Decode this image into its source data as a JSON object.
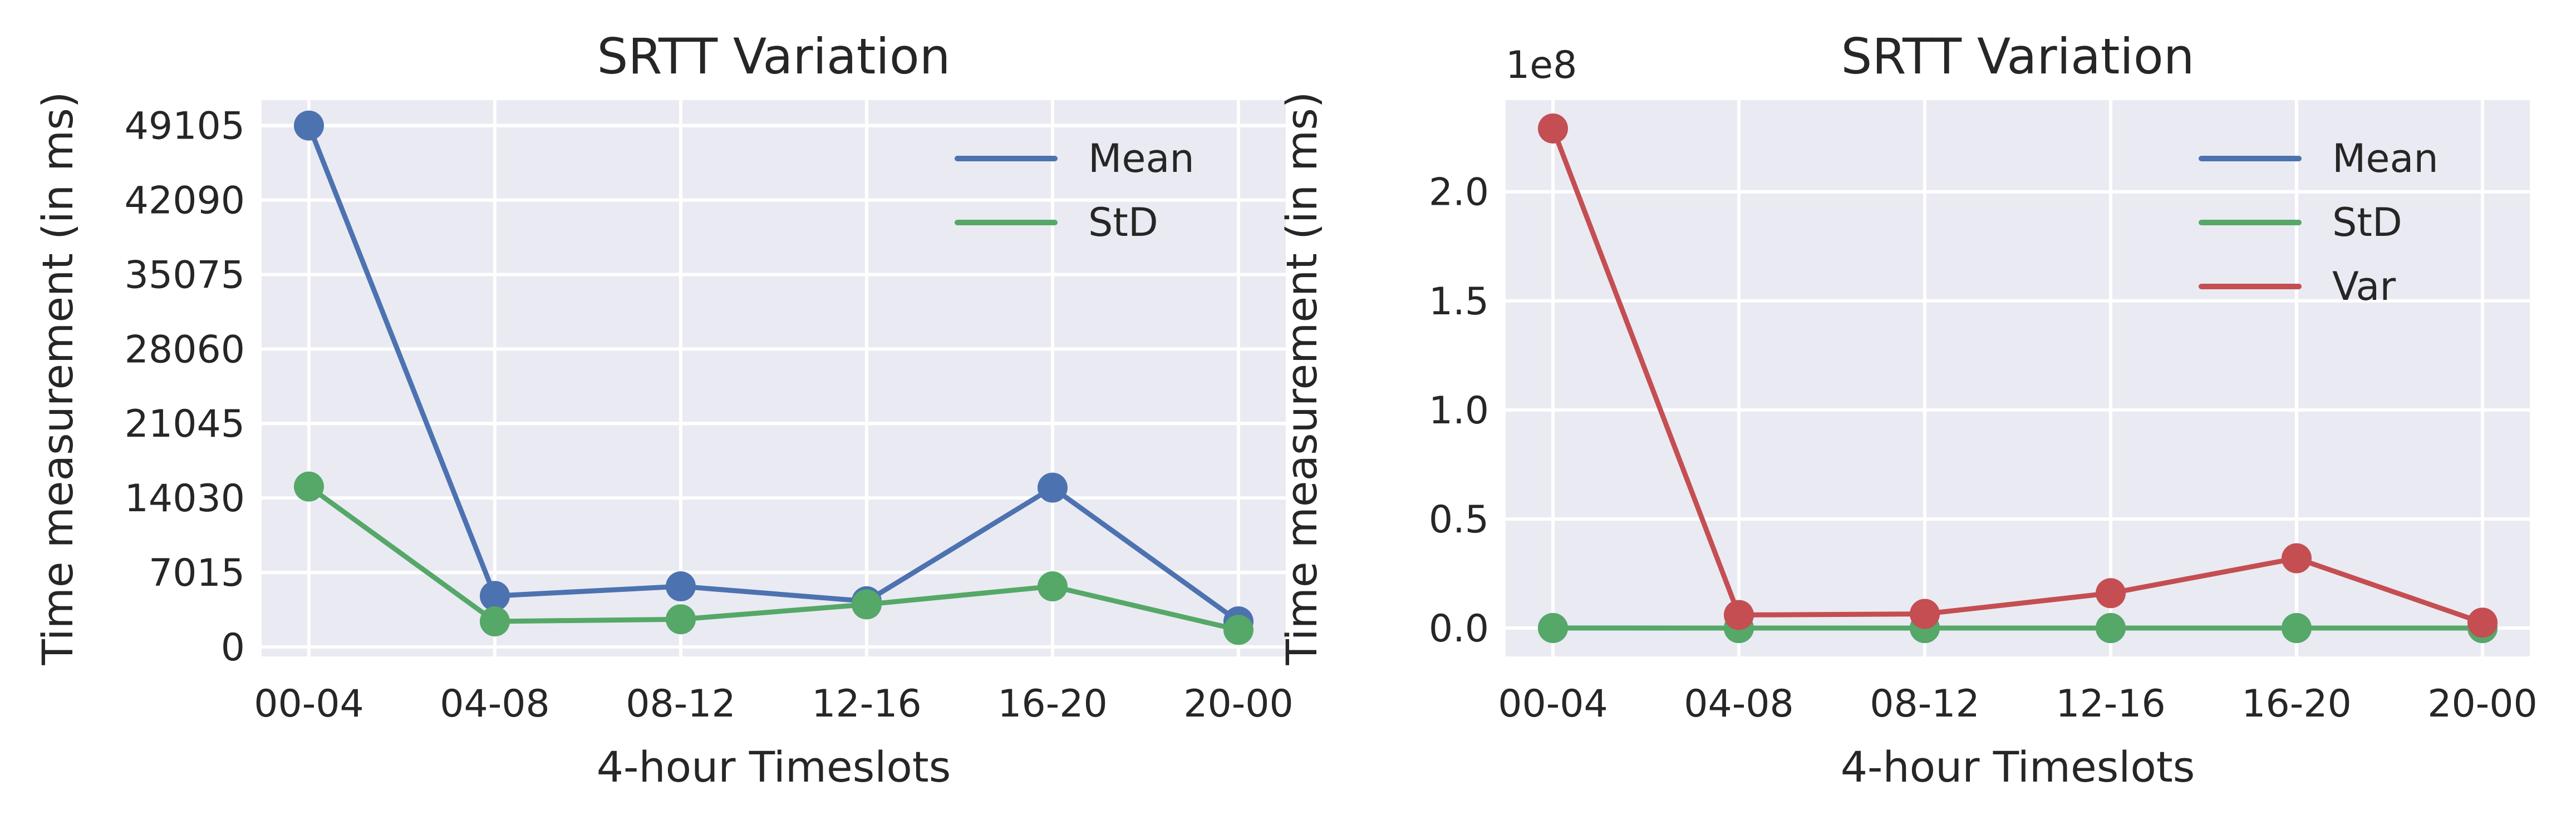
{
  "colors": {
    "mean": "#4c72b0",
    "std": "#55a868",
    "var": "#c44e52",
    "plot_background": "#eaeaf2",
    "grid": "#ffffff",
    "text": "#262626"
  },
  "chart_data": [
    {
      "type": "line",
      "title": "SRTT Variation",
      "xlabel": "4-hour Timeslots",
      "ylabel": "Time measurement (in ms)",
      "categories": [
        "00-04",
        "04-08",
        "08-12",
        "12-16",
        "16-20",
        "20-00"
      ],
      "yticks": [
        0,
        7015,
        14030,
        21045,
        28060,
        35075,
        42090,
        49105
      ],
      "ytick_labels": [
        "0",
        "7015",
        "14030",
        "21045",
        "28060",
        "35075",
        "42090",
        "49105"
      ],
      "ylim": [
        -900,
        51500
      ],
      "grid": true,
      "legend_position": "top-right",
      "offset_text": "",
      "series": [
        {
          "name": "Mean",
          "color_key": "mean",
          "values": [
            49105,
            4800,
            5700,
            4300,
            15000,
            2400
          ]
        },
        {
          "name": "StD",
          "color_key": "std",
          "values": [
            15100,
            2400,
            2600,
            4000,
            5700,
            1600
          ]
        }
      ]
    },
    {
      "type": "line",
      "title": "SRTT Variation",
      "xlabel": "4-hour Timeslots",
      "ylabel": "Time measurement (in ms)",
      "categories": [
        "00-04",
        "04-08",
        "08-12",
        "12-16",
        "16-20",
        "20-00"
      ],
      "yticks": [
        0.0,
        0.5,
        1.0,
        1.5,
        2.0
      ],
      "ytick_labels": [
        "0.0",
        "0.5",
        "1.0",
        "1.5",
        "2.0"
      ],
      "ylim": [
        -0.13,
        2.42
      ],
      "grid": true,
      "legend_position": "top-right",
      "offset_text": "1e8",
      "series": [
        {
          "name": "Mean",
          "color_key": "mean",
          "values": [
            0.0005,
            5e-05,
            6e-05,
            4e-05,
            0.00015,
            2e-05
          ]
        },
        {
          "name": "StD",
          "color_key": "std",
          "values": [
            0.00015,
            2e-05,
            3e-05,
            4e-05,
            6e-05,
            2e-05
          ]
        },
        {
          "name": "Var",
          "color_key": "var",
          "values": [
            2.29,
            0.06,
            0.065,
            0.16,
            0.32,
            0.025
          ]
        }
      ]
    }
  ]
}
